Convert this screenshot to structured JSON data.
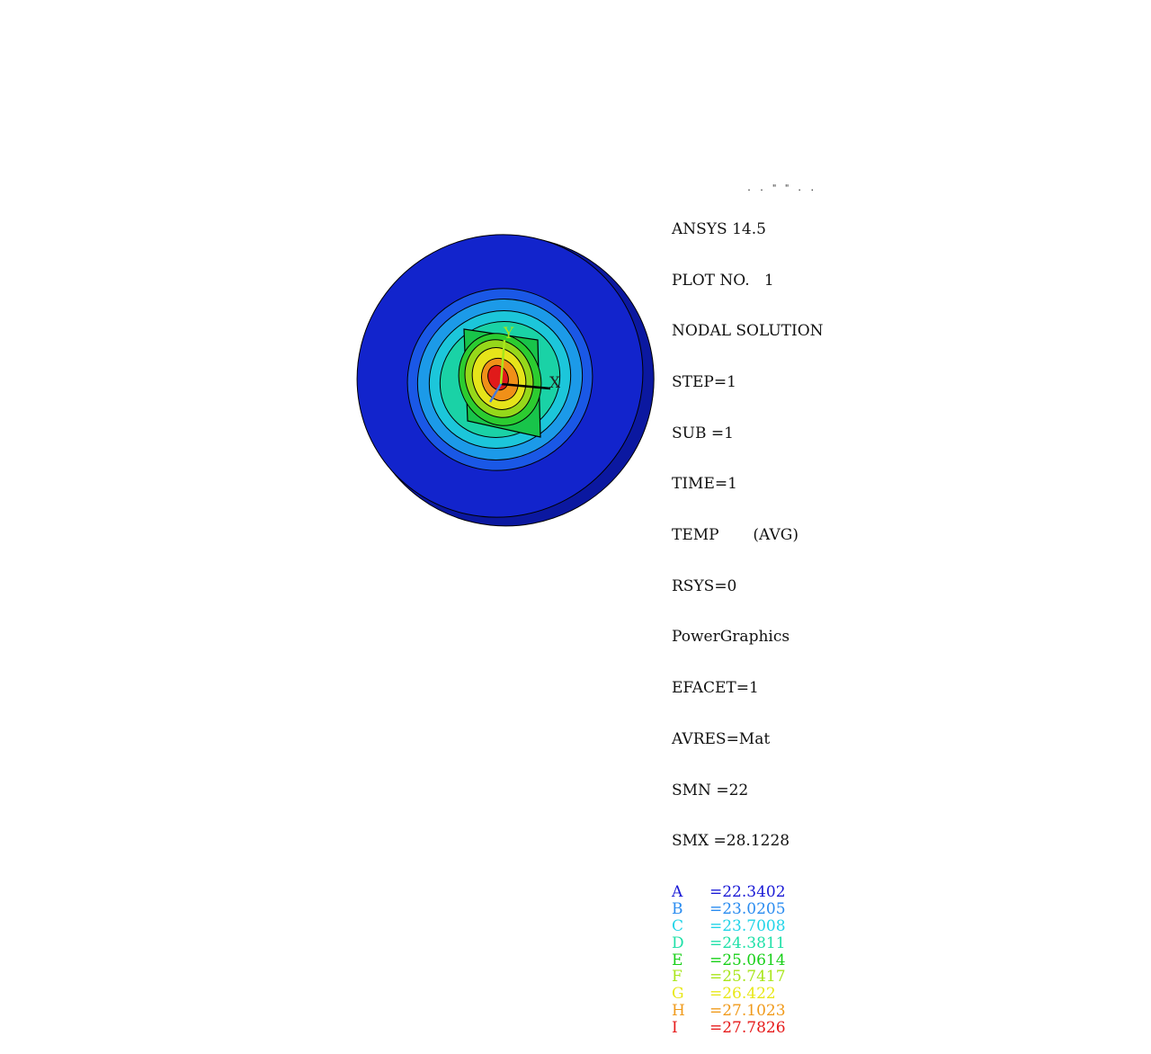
{
  "header_marks": ". . \" \" .  .",
  "info_lines": [
    "ANSYS 14.5",
    "PLOT NO.   1",
    "NODAL SOLUTION",
    "STEP=1",
    "SUB =1",
    "TIME=1",
    "TEMP       (AVG)",
    "RSYS=0",
    "PowerGraphics",
    "EFACET=1",
    "AVRES=Mat",
    "SMN =22",
    "SMX =28.1228"
  ],
  "contours": [
    {
      "letter": "A",
      "value": "=22.3402",
      "color": "#1a1ad6"
    },
    {
      "letter": "B",
      "value": "=23.0205",
      "color": "#2a8cf0"
    },
    {
      "letter": "C",
      "value": "=23.7008",
      "color": "#22d4e8"
    },
    {
      "letter": "D",
      "value": "=24.3811",
      "color": "#1fe0a8"
    },
    {
      "letter": "E",
      "value": "=25.0614",
      "color": "#18d018"
    },
    {
      "letter": "F",
      "value": "=25.7417",
      "color": "#a8e61a"
    },
    {
      "letter": "G",
      "value": "=26.422",
      "color": "#e8e81a"
    },
    {
      "letter": "H",
      "value": "=27.1023",
      "color": "#f09a1a"
    },
    {
      "letter": "I",
      "value": "=27.7826",
      "color": "#e61a1a"
    }
  ],
  "triad": {
    "x_label": "X",
    "y_label": "Y"
  },
  "model_colors": {
    "rim": "#1020c8",
    "rim_edge": "#0a17a8",
    "band_a": "#1a4ee0",
    "band_b": "#1a9ae6",
    "band_c": "#1cc8d8",
    "band_d": "#1cd6a0",
    "band_e": "#1acb4a",
    "band_f": "#8ad61a",
    "band_g": "#e0e01a",
    "band_h": "#f0901a",
    "band_i": "#e01a1a"
  }
}
